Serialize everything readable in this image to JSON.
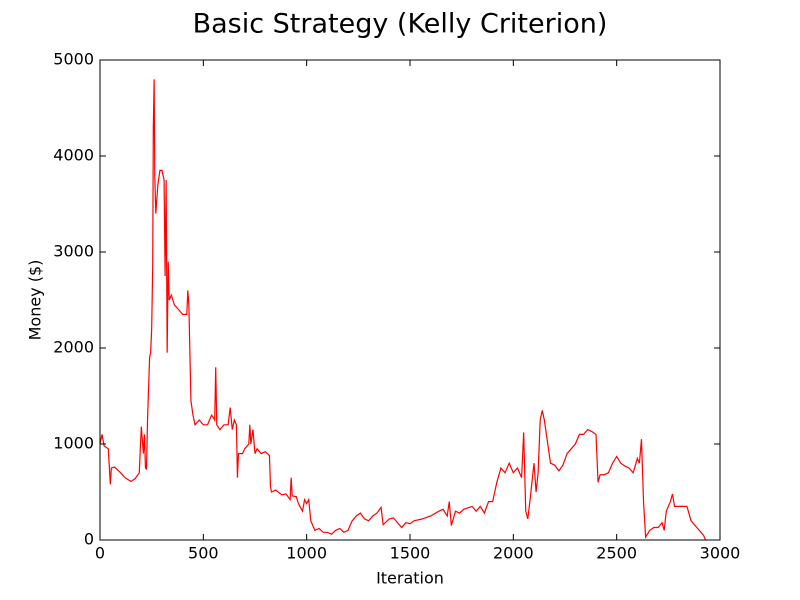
{
  "chart_data": {
    "type": "line",
    "title": "Basic Strategy (Kelly Criterion)",
    "x_label": "Iteration",
    "y_label": "Money ($)",
    "x": [
      0,
      10,
      20,
      40,
      50,
      55,
      70,
      100,
      120,
      150,
      170,
      190,
      195,
      200,
      210,
      215,
      220,
      225,
      230,
      240,
      245,
      250,
      255,
      258,
      262,
      265,
      270,
      280,
      290,
      300,
      310,
      315,
      320,
      325,
      330,
      335,
      345,
      360,
      380,
      400,
      420,
      425,
      430,
      440,
      450,
      460,
      480,
      500,
      520,
      540,
      555,
      560,
      565,
      580,
      600,
      620,
      630,
      640,
      650,
      660,
      665,
      670,
      690,
      700,
      720,
      725,
      730,
      740,
      750,
      760,
      780,
      800,
      820,
      825,
      830,
      850,
      880,
      900,
      920,
      925,
      930,
      950,
      960,
      980,
      990,
      1000,
      1010,
      1020,
      1040,
      1060,
      1080,
      1100,
      1120,
      1140,
      1160,
      1180,
      1200,
      1220,
      1240,
      1260,
      1280,
      1300,
      1320,
      1340,
      1360,
      1370,
      1400,
      1420,
      1440,
      1460,
      1480,
      1500,
      1520,
      1560,
      1600,
      1640,
      1660,
      1680,
      1690,
      1700,
      1720,
      1740,
      1760,
      1800,
      1820,
      1840,
      1860,
      1880,
      1900,
      1920,
      1940,
      1960,
      1980,
      2000,
      2020,
      2040,
      2050,
      2060,
      2070,
      2080,
      2090,
      2100,
      2110,
      2120,
      2130,
      2140,
      2150,
      2160,
      2180,
      2200,
      2220,
      2240,
      2260,
      2280,
      2300,
      2320,
      2340,
      2360,
      2380,
      2400,
      2410,
      2420,
      2440,
      2460,
      2480,
      2500,
      2520,
      2540,
      2560,
      2580,
      2600,
      2610,
      2620,
      2630,
      2640,
      2660,
      2680,
      2700,
      2720,
      2730,
      2740,
      2760,
      2770,
      2780,
      2800,
      2840,
      2860,
      2880,
      2900,
      2920,
      2930
    ],
    "values": [
      1000,
      1100,
      980,
      950,
      580,
      750,
      760,
      700,
      650,
      610,
      640,
      700,
      950,
      1180,
      900,
      1100,
      750,
      740,
      1250,
      1900,
      1950,
      2200,
      2850,
      4300,
      4800,
      3800,
      3400,
      3700,
      3850,
      3850,
      3750,
      2750,
      3750,
      1950,
      2900,
      2500,
      2550,
      2450,
      2400,
      2350,
      2350,
      2600,
      2450,
      1450,
      1300,
      1200,
      1250,
      1200,
      1200,
      1300,
      1250,
      1800,
      1200,
      1150,
      1200,
      1200,
      1380,
      1150,
      1250,
      1200,
      650,
      900,
      900,
      950,
      1000,
      1200,
      1000,
      1150,
      900,
      950,
      900,
      920,
      880,
      550,
      500,
      520,
      470,
      480,
      420,
      650,
      460,
      450,
      380,
      300,
      420,
      380,
      420,
      200,
      100,
      120,
      80,
      80,
      60,
      100,
      120,
      80,
      100,
      200,
      250,
      280,
      220,
      200,
      250,
      280,
      340,
      160,
      220,
      230,
      180,
      130,
      180,
      170,
      200,
      220,
      250,
      300,
      320,
      250,
      400,
      150,
      300,
      280,
      320,
      350,
      300,
      350,
      280,
      400,
      400,
      600,
      750,
      700,
      800,
      700,
      750,
      650,
      1120,
      300,
      220,
      400,
      600,
      800,
      500,
      700,
      1250,
      1350,
      1250,
      1100,
      800,
      780,
      720,
      780,
      900,
      950,
      1000,
      1100,
      1100,
      1150,
      1130,
      1100,
      600,
      680,
      680,
      700,
      800,
      870,
      800,
      770,
      750,
      700,
      850,
      800,
      1050,
      400,
      30,
      100,
      130,
      130,
      180,
      100,
      300,
      400,
      480,
      350,
      350,
      350,
      200,
      150,
      100,
      50,
      0
    ],
    "color": "#ff0000",
    "xlim": [
      0,
      3000
    ],
    "ylim": [
      0,
      5000
    ],
    "xticks": [
      0,
      500,
      1000,
      1500,
      2000,
      2500,
      3000
    ],
    "yticks": [
      0,
      1000,
      2000,
      3000,
      4000,
      5000
    ],
    "grid": false
  }
}
